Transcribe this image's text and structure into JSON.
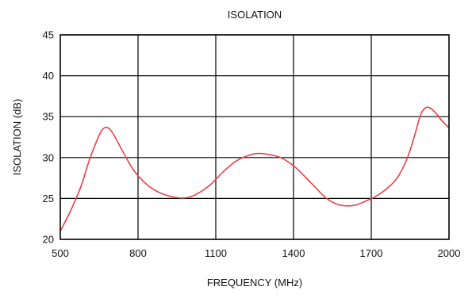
{
  "chart_data": {
    "type": "line",
    "title": "ISOLATION",
    "xlabel": "FREQUENCY (MHz)",
    "ylabel": "ISOLATION (dB)",
    "xlim": [
      500,
      2000
    ],
    "ylim": [
      20,
      45
    ],
    "x_ticks": [
      500,
      800,
      1100,
      1400,
      1700,
      2000
    ],
    "y_ticks": [
      20,
      25,
      30,
      35,
      40,
      45
    ],
    "x_tick_labels": [
      "500",
      "800",
      "1100",
      "1400",
      "1700",
      "2000"
    ],
    "y_tick_labels": [
      "20",
      "25",
      "30",
      "35",
      "40",
      "45"
    ],
    "grid": true,
    "legend": "none",
    "colors": {
      "series": "#e8404a",
      "grid": "#000000",
      "axis": "#000000"
    },
    "series": [
      {
        "x": [
          500,
          540,
          580,
          610,
          640,
          660,
          675,
          690,
          710,
          740,
          780,
          820,
          860,
          900,
          950,
          990,
          1030,
          1080,
          1130,
          1180,
          1230,
          1260,
          1300,
          1350,
          1400,
          1440,
          1480,
          1520,
          1560,
          1600,
          1640,
          1680,
          1720,
          1760,
          1800,
          1840,
          1870,
          1890,
          1910,
          1930,
          1950,
          1970,
          2000
        ],
        "y": [
          21.0,
          23.5,
          26.5,
          29.5,
          32.0,
          33.3,
          33.7,
          33.5,
          32.6,
          30.8,
          28.6,
          27.1,
          26.1,
          25.5,
          25.1,
          25.1,
          25.6,
          26.7,
          28.3,
          29.6,
          30.3,
          30.5,
          30.4,
          30.0,
          29.0,
          27.8,
          26.5,
          25.2,
          24.4,
          24.1,
          24.2,
          24.7,
          25.3,
          26.2,
          27.5,
          30.0,
          33.0,
          35.2,
          36.1,
          36.0,
          35.4,
          34.6,
          33.6
        ]
      }
    ]
  }
}
